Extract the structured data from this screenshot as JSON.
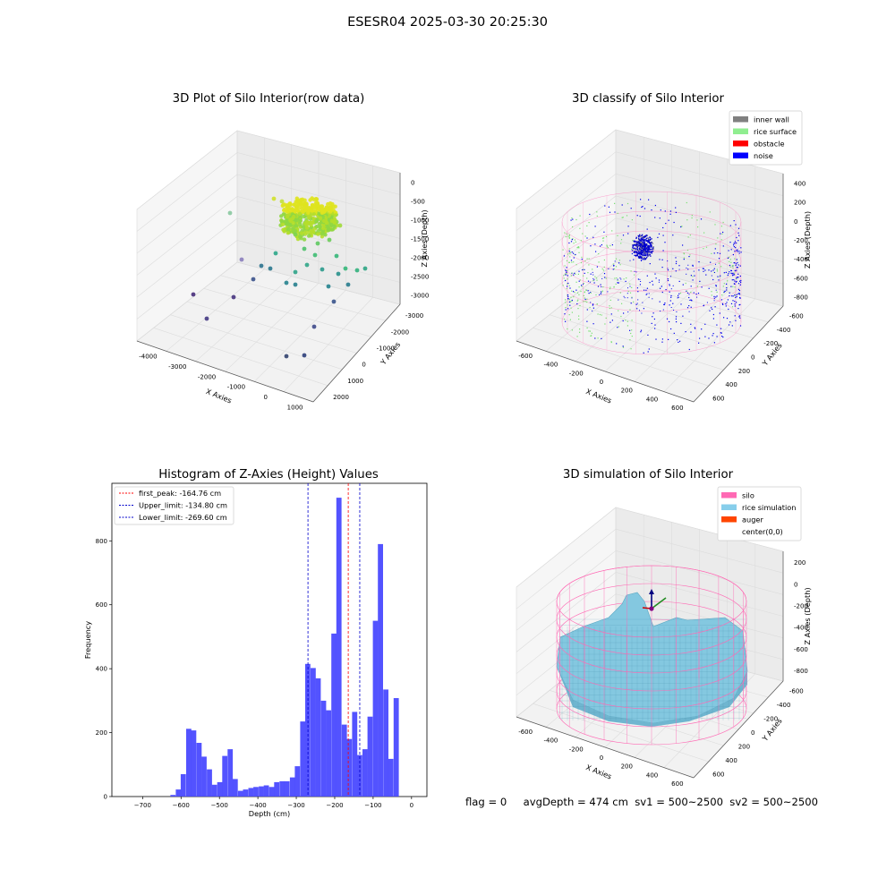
{
  "suptitle": "ESESR04 2025-03-30 20:25:30",
  "footer": "flag = 0     avgDepth = 474 cm  sv1 = 500~2500  sv2 = 500~2500",
  "chart_data": [
    {
      "type": "scatter",
      "title": "3D Plot of Silo Interior(row data)",
      "xlabel": "X Axies",
      "ylabel": "Y Axies",
      "zlabel": "Z Axies (Depth)",
      "xticks": [
        "-4000",
        "-3000",
        "-2000",
        "-1000",
        "0",
        "1000"
      ],
      "yticks": [
        "-3000",
        "-2000",
        "-1000",
        "0",
        "1000",
        "2000"
      ],
      "zticks": [
        "0",
        "-500",
        "-1000",
        "-1500",
        "-2000",
        "-2500",
        "-3000"
      ],
      "colormap": "viridis",
      "grid": true
    },
    {
      "type": "scatter",
      "title": "3D classify of Silo Interior",
      "xlabel": "X Axies",
      "ylabel": "Y Axies",
      "zlabel": "Z Axies (Depth)",
      "xticks": [
        "-600",
        "-400",
        "-200",
        "0",
        "200",
        "400",
        "600"
      ],
      "yticks": [
        "-600",
        "-400",
        "-200",
        "0",
        "200",
        "400",
        "600"
      ],
      "zticks": [
        "400",
        "200",
        "0",
        "-200",
        "-400",
        "-600",
        "-800"
      ],
      "legend": [
        {
          "label": "inner wall",
          "color": "#808080"
        },
        {
          "label": "rice surface",
          "color": "#90ee90"
        },
        {
          "label": "obstacle",
          "color": "#ff0000"
        },
        {
          "label": "noise",
          "color": "#0000ff"
        }
      ],
      "legend_position": "top-right",
      "grid": true
    },
    {
      "type": "bar",
      "title": "Histogram of Z-Axies (Height) Values",
      "xlabel": "Depth (cm)",
      "ylabel": "Frequency",
      "xlim": [
        -780,
        40
      ],
      "ylim": [
        0,
        980
      ],
      "xticks": [
        -700,
        -600,
        -500,
        -400,
        -300,
        -200,
        -100,
        0
      ],
      "yticks": [
        0,
        200,
        400,
        600,
        800
      ],
      "bin_width": 13.5,
      "bins": [
        [
          -621,
          5
        ],
        [
          -607,
          22
        ],
        [
          -594,
          70
        ],
        [
          -580,
          212
        ],
        [
          -567,
          207
        ],
        [
          -553,
          168
        ],
        [
          -540,
          125
        ],
        [
          -526,
          85
        ],
        [
          -513,
          37
        ],
        [
          -499,
          45
        ],
        [
          -486,
          127
        ],
        [
          -472,
          148
        ],
        [
          -459,
          55
        ],
        [
          -445,
          18
        ],
        [
          -432,
          22
        ],
        [
          -418,
          27
        ],
        [
          -405,
          30
        ],
        [
          -391,
          32
        ],
        [
          -378,
          35
        ],
        [
          -364,
          30
        ],
        [
          -351,
          45
        ],
        [
          -337,
          48
        ],
        [
          -324,
          48
        ],
        [
          -310,
          60
        ],
        [
          -297,
          95
        ],
        [
          -283,
          235
        ],
        [
          -270,
          415
        ],
        [
          -256,
          402
        ],
        [
          -243,
          370
        ],
        [
          -229,
          300
        ],
        [
          -216,
          270
        ],
        [
          -202,
          510
        ],
        [
          -189,
          935
        ],
        [
          -175,
          225
        ],
        [
          -162,
          180
        ],
        [
          -148,
          265
        ],
        [
          -135,
          130
        ],
        [
          -121,
          148
        ],
        [
          -108,
          250
        ],
        [
          -94,
          550
        ],
        [
          -81,
          790
        ],
        [
          -67,
          335
        ],
        [
          -54,
          118
        ],
        [
          -40,
          308
        ]
      ],
      "bar_color": "#4a4aff",
      "vlines": [
        {
          "label": "first_peak: -164.76 cm",
          "x": -164.76,
          "color": "#ff0000"
        },
        {
          "label": "Upper_limit: -134.80 cm",
          "x": -134.8,
          "color": "#0000cc"
        },
        {
          "label": "Lower_limit: -269.60 cm",
          "x": -269.6,
          "color": "#0000cc"
        }
      ],
      "legend_position": "top-left"
    },
    {
      "type": "surface",
      "title": "3D simulation of Silo Interior",
      "xlabel": "X Axies",
      "ylabel": "Y Axies",
      "zlabel": "Z Axies (Depth)",
      "xticks": [
        "-600",
        "-400",
        "-200",
        "0",
        "200",
        "400",
        "600"
      ],
      "yticks": [
        "-600",
        "-400",
        "-200",
        "0",
        "200",
        "400",
        "600"
      ],
      "zticks": [
        "200",
        "0",
        "-200",
        "-400",
        "-600",
        "-800"
      ],
      "legend": [
        {
          "label": "silo",
          "color": "#ff69b4"
        },
        {
          "label": "rice simulation",
          "color": "#87ceeb"
        },
        {
          "label": "auger",
          "color": "#ff4500"
        },
        {
          "label": "center(0,0)",
          "color": "#ffffff"
        }
      ],
      "legend_position": "top-right",
      "grid": true
    }
  ]
}
